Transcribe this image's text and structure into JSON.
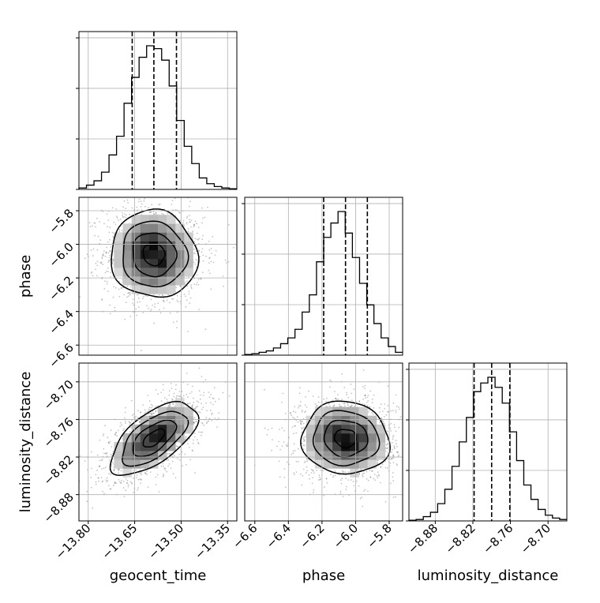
{
  "chart_data": {
    "type": "corner",
    "parameters": [
      "geocent_time",
      "phase",
      "luminosity_distance"
    ],
    "axis_labels": {
      "x": [
        "geocent_time",
        "phase",
        "luminosity_distance"
      ],
      "y": [
        "phase",
        "luminosity_distance"
      ]
    },
    "ranges": {
      "geocent_time": [
        -13.83,
        -13.32
      ],
      "phase": [
        -6.66,
        -5.72
      ],
      "luminosity_distance": [
        -8.922,
        -8.67
      ]
    },
    "ticks": {
      "geocent_time": [
        {
          "v": -13.8,
          "label": "−13.80"
        },
        {
          "v": -13.65,
          "label": "−13.65"
        },
        {
          "v": -13.5,
          "label": "−13.50"
        },
        {
          "v": -13.35,
          "label": "−13.35"
        }
      ],
      "phase": [
        {
          "v": -6.6,
          "label": "−6.6"
        },
        {
          "v": -6.4,
          "label": "−6.4"
        },
        {
          "v": -6.2,
          "label": "−6.2"
        },
        {
          "v": -6.0,
          "label": "−6.0"
        },
        {
          "v": -5.8,
          "label": "−5.8"
        }
      ],
      "luminosity_distance": [
        {
          "v": -8.88,
          "label": "−8.88"
        },
        {
          "v": -8.82,
          "label": "−8.82"
        },
        {
          "v": -8.76,
          "label": "−8.76"
        },
        {
          "v": -8.7,
          "label": "−8.70"
        }
      ]
    },
    "marginals": [
      {
        "parameter": "geocent_time",
        "quantiles": [
          -13.658,
          -13.588,
          -13.515
        ],
        "counts": [
          1,
          3,
          6,
          12,
          24,
          37,
          60,
          78,
          92,
          100,
          98,
          90,
          72,
          48,
          30,
          18,
          8,
          4,
          2,
          1,
          0.5
        ]
      },
      {
        "parameter": "phase",
        "quantiles": [
          -6.19,
          -6.06,
          -5.93
        ],
        "counts": [
          0.5,
          1,
          2,
          3,
          5,
          8,
          12,
          18,
          30,
          42,
          65,
          82,
          92,
          100,
          85,
          68,
          50,
          35,
          22,
          12,
          6,
          2
        ]
      },
      {
        "parameter": "luminosity_distance",
        "quantiles": [
          -8.818,
          -8.79,
          -8.761
        ],
        "counts": [
          0.5,
          1,
          3,
          6,
          12,
          22,
          38,
          55,
          72,
          90,
          96,
          100,
          93,
          82,
          62,
          42,
          25,
          15,
          8,
          4,
          2,
          1
        ]
      }
    ],
    "joints": [
      {
        "x": "geocent_time",
        "y": "phase",
        "mean": [
          -13.588,
          -6.06
        ],
        "sd": [
          0.07,
          0.13
        ],
        "corr": -0.05
      },
      {
        "x": "geocent_time",
        "y": "luminosity_distance",
        "mean": [
          -13.588,
          -8.79
        ],
        "sd": [
          0.07,
          0.029
        ],
        "corr": 0.62
      },
      {
        "x": "phase",
        "y": "luminosity_distance",
        "mean": [
          -6.06,
          -8.79
        ],
        "sd": [
          0.13,
          0.029
        ],
        "corr": -0.05
      }
    ],
    "contour_levels_sigma": [
      0.5,
      1.0,
      1.5,
      2.0
    ],
    "grid": true,
    "colors": {
      "line": "#000000",
      "grid": "#b0b0b0",
      "points": "#555555"
    }
  }
}
